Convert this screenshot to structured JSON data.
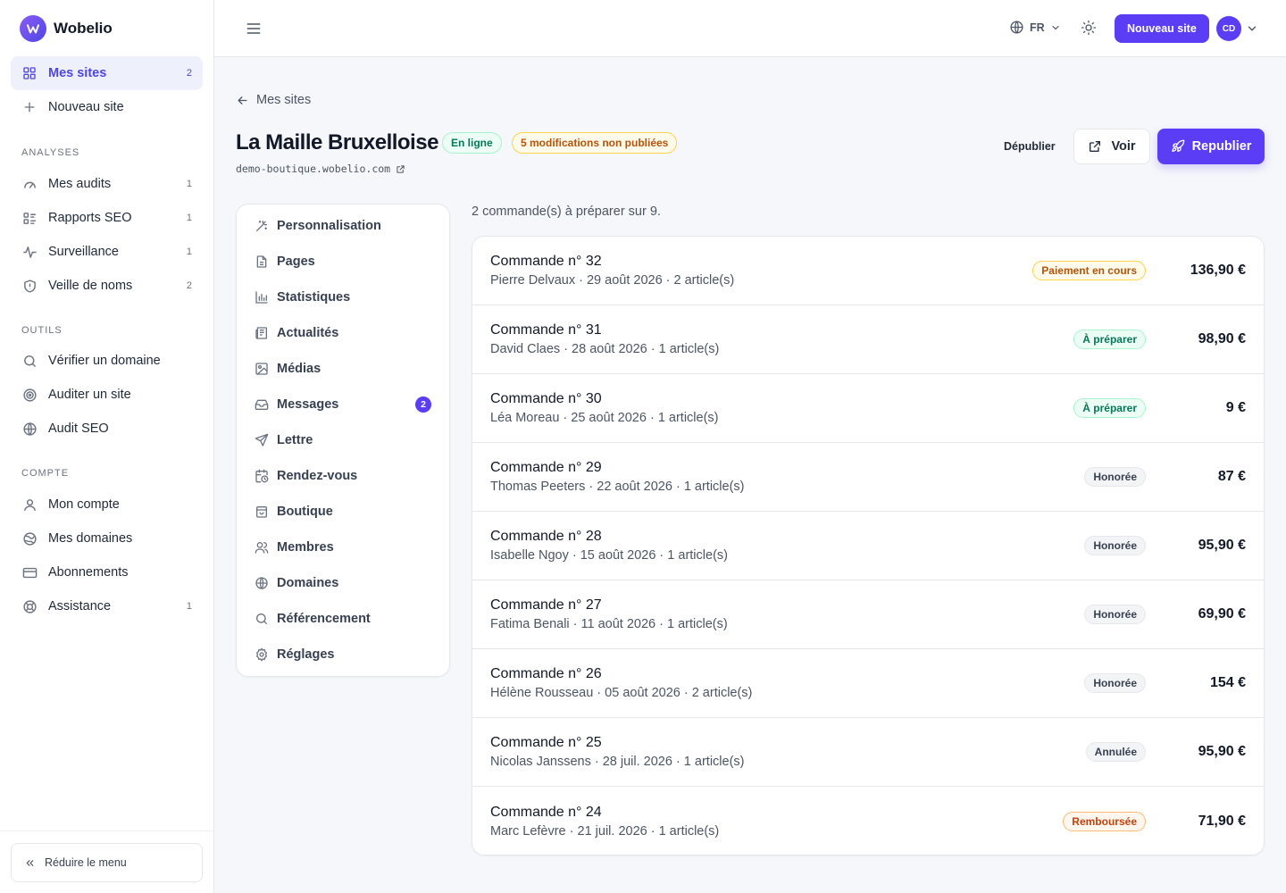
{
  "brand": {
    "name": "Wobelio"
  },
  "sidebar": {
    "primary": [
      {
        "label": "Mes sites",
        "count": "2",
        "icon": "grid-icon"
      },
      {
        "label": "Nouveau site",
        "count": "",
        "icon": "plus-icon"
      }
    ],
    "sections": [
      {
        "title": "ANALYSES",
        "items": [
          {
            "label": "Mes audits",
            "count": "1",
            "icon": "gauge-icon"
          },
          {
            "label": "Rapports SEO",
            "count": "1",
            "icon": "report-icon"
          },
          {
            "label": "Surveillance",
            "count": "1",
            "icon": "pulse-icon"
          },
          {
            "label": "Veille de noms",
            "count": "2",
            "icon": "shield-icon"
          }
        ]
      },
      {
        "title": "OUTILS",
        "items": [
          {
            "label": "Vérifier un domaine",
            "count": "",
            "icon": "search-icon"
          },
          {
            "label": "Auditer un site",
            "count": "",
            "icon": "target-icon"
          },
          {
            "label": "Audit SEO",
            "count": "",
            "icon": "globe-icon"
          }
        ]
      },
      {
        "title": "COMPTE",
        "items": [
          {
            "label": "Mon compte",
            "count": "",
            "icon": "user-icon"
          },
          {
            "label": "Mes domaines",
            "count": "",
            "icon": "globe-icon"
          },
          {
            "label": "Abonnements",
            "count": "",
            "icon": "card-icon"
          },
          {
            "label": "Assistance",
            "count": "1",
            "icon": "lifebuoy-icon"
          }
        ]
      }
    ],
    "collapse_label": "Réduire le menu"
  },
  "topbar": {
    "lang": "FR",
    "new_site_label": "Nouveau site",
    "avatar_initials": "CD"
  },
  "header": {
    "back_label": "Mes sites",
    "title": "La Maille Bruxelloise",
    "online_badge": "En ligne",
    "mods_badge": "5 modifications non publiées",
    "domain": "demo-boutique.wobelio.com",
    "unpublish_label": "Dépublier",
    "view_label": "Voir",
    "republish_label": "Republier"
  },
  "site_menu": [
    {
      "label": "Personnalisation",
      "icon": "wand-icon",
      "count": ""
    },
    {
      "label": "Pages",
      "icon": "file-icon",
      "count": ""
    },
    {
      "label": "Statistiques",
      "icon": "bar-chart-icon",
      "count": ""
    },
    {
      "label": "Actualités",
      "icon": "newspaper-icon",
      "count": ""
    },
    {
      "label": "Médias",
      "icon": "image-icon",
      "count": ""
    },
    {
      "label": "Messages",
      "icon": "inbox-icon",
      "count": "2"
    },
    {
      "label": "Lettre",
      "icon": "send-icon",
      "count": ""
    },
    {
      "label": "Rendez-vous",
      "icon": "calendar-clock-icon",
      "count": ""
    },
    {
      "label": "Boutique",
      "icon": "shopping-bag-icon",
      "count": ""
    },
    {
      "label": "Membres",
      "icon": "users-icon",
      "count": ""
    },
    {
      "label": "Domaines",
      "icon": "globe-icon",
      "count": ""
    },
    {
      "label": "Référencement",
      "icon": "search-icon",
      "count": ""
    },
    {
      "label": "Réglages",
      "icon": "gear-icon",
      "count": ""
    }
  ],
  "orders_summary": "2 commande(s) à préparer sur 9.",
  "orders": [
    {
      "title": "Commande n° 32",
      "meta": "Pierre Delvaux · 29 août 2026 · 2 article(s)",
      "status": "Paiement en cours",
      "status_type": "pending",
      "amount": "136,90 €"
    },
    {
      "title": "Commande n° 31",
      "meta": "David Claes · 28 août 2026 · 1 article(s)",
      "status": "À préparer",
      "status_type": "prepare",
      "amount": "98,90 €"
    },
    {
      "title": "Commande n° 30",
      "meta": "Léa Moreau · 25 août 2026 · 1 article(s)",
      "status": "À préparer",
      "status_type": "prepare",
      "amount": "9 €"
    },
    {
      "title": "Commande n° 29",
      "meta": "Thomas Peeters · 22 août 2026 · 1 article(s)",
      "status": "Honorée",
      "status_type": "honored",
      "amount": "87 €"
    },
    {
      "title": "Commande n° 28",
      "meta": "Isabelle Ngoy · 15 août 2026 · 1 article(s)",
      "status": "Honorée",
      "status_type": "honored",
      "amount": "95,90 €"
    },
    {
      "title": "Commande n° 27",
      "meta": "Fatima Benali · 11 août 2026 · 1 article(s)",
      "status": "Honorée",
      "status_type": "honored",
      "amount": "69,90 €"
    },
    {
      "title": "Commande n° 26",
      "meta": "Hélène Rousseau · 05 août 2026 · 2 article(s)",
      "status": "Honorée",
      "status_type": "honored",
      "amount": "154 €"
    },
    {
      "title": "Commande n° 25",
      "meta": "Nicolas Janssens · 28 juil. 2026 · 1 article(s)",
      "status": "Annulée",
      "status_type": "cancelled",
      "amount": "95,90 €"
    },
    {
      "title": "Commande n° 24",
      "meta": "Marc Lefèvre · 21 juil. 2026 · 1 article(s)",
      "status": "Remboursée",
      "status_type": "refunded",
      "amount": "71,90 €"
    }
  ]
}
